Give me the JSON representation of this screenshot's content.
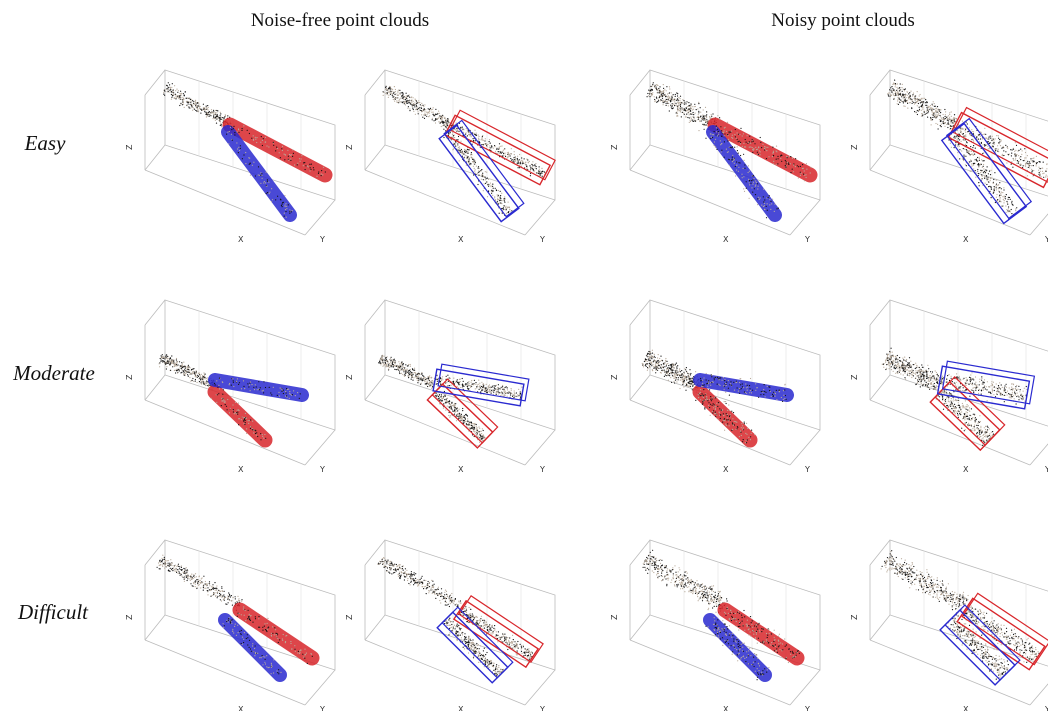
{
  "header": {
    "columns": [
      "Noise-free point clouds",
      "Noisy point clouds"
    ]
  },
  "rows": [
    "Easy",
    "Moderate",
    "Difficult"
  ],
  "axis_labels": {
    "x": "X",
    "y": "Y",
    "z": "Z"
  }
}
